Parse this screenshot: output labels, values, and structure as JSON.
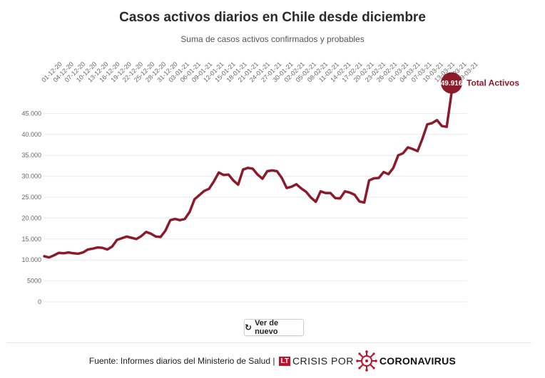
{
  "title": "Casos activos diarios en Chile desde diciembre",
  "subtitle": "Suma de casos activos confirmados y probables",
  "button": {
    "label": "Ver de nuevo"
  },
  "footer": {
    "source": "Fuente: Informes diarios del Ministerio de Salud |",
    "logo_lt": "LT",
    "logo_crisis": "CRISIS POR",
    "logo_coronavirus": "CORONAVIRUS"
  },
  "colors": {
    "line": "#8b1a2a",
    "badge": "#8b1a2a",
    "logo_red": "#c0102a"
  },
  "chart_data": {
    "type": "line",
    "title": "Casos activos diarios en Chile desde diciembre",
    "subtitle": "Suma de casos activos confirmados y probables",
    "ylim": [
      0,
      50000
    ],
    "y_ticks": [
      0,
      5000,
      10000,
      15000,
      20000,
      25000,
      30000,
      35000,
      40000,
      45000
    ],
    "y_tick_labels": [
      "0",
      "5000",
      "10.000",
      "15.000",
      "20.000",
      "25.000",
      "30.000",
      "35.000",
      "40.000",
      "45.000"
    ],
    "x_tick_labels": [
      "01-12-20",
      "04-12-20",
      "07-12-20",
      "10-12-20",
      "13-12-20",
      "16-12-20",
      "19-12-20",
      "22-12-20",
      "25-12-20",
      "28-12-20",
      "31-12-20",
      "03-01-21",
      "06-01-21",
      "09-01-21",
      "12-01-21",
      "15-01-21",
      "18-01-21",
      "21-01-21",
      "24-01-21",
      "27-01-21",
      "30-01-21",
      "02-02-21",
      "05-02-21",
      "08-02-21",
      "11-02-21",
      "14-02-21",
      "17-02-21",
      "20-02-21",
      "23-02-21",
      "26-02-21",
      "01-03-21",
      "04-03-21",
      "07-03-21",
      "10-03-21",
      "13-03-21",
      "16-03-21",
      "19-03-21"
    ],
    "grid": true,
    "series": [
      {
        "name": "Total Activos",
        "values": [
          10900,
          10600,
          11100,
          11700,
          11600,
          11800,
          11600,
          11500,
          11800,
          12500,
          12700,
          13000,
          12900,
          12500,
          13200,
          14800,
          15200,
          15600,
          15300,
          15000,
          15700,
          16700,
          16300,
          15600,
          15500,
          17000,
          19500,
          19800,
          19500,
          19800,
          21500,
          24500,
          25500,
          26500,
          27000,
          28800,
          30900,
          30300,
          30400,
          29000,
          28000,
          31600,
          32000,
          31800,
          30400,
          29400,
          31200,
          31400,
          31200,
          29600,
          27200,
          27500,
          28100,
          27100,
          26300,
          24900,
          23900,
          26400,
          26000,
          26000,
          24800,
          24700,
          26400,
          26100,
          25600,
          24000,
          23700,
          29000,
          29500,
          29600,
          31000,
          30500,
          32000,
          35000,
          35500,
          36900,
          36500,
          36000,
          39000,
          42400,
          42700,
          43400,
          42000,
          41800,
          49916
        ]
      }
    ],
    "last_value_label": "49.916",
    "series_label": "Total Activos"
  }
}
